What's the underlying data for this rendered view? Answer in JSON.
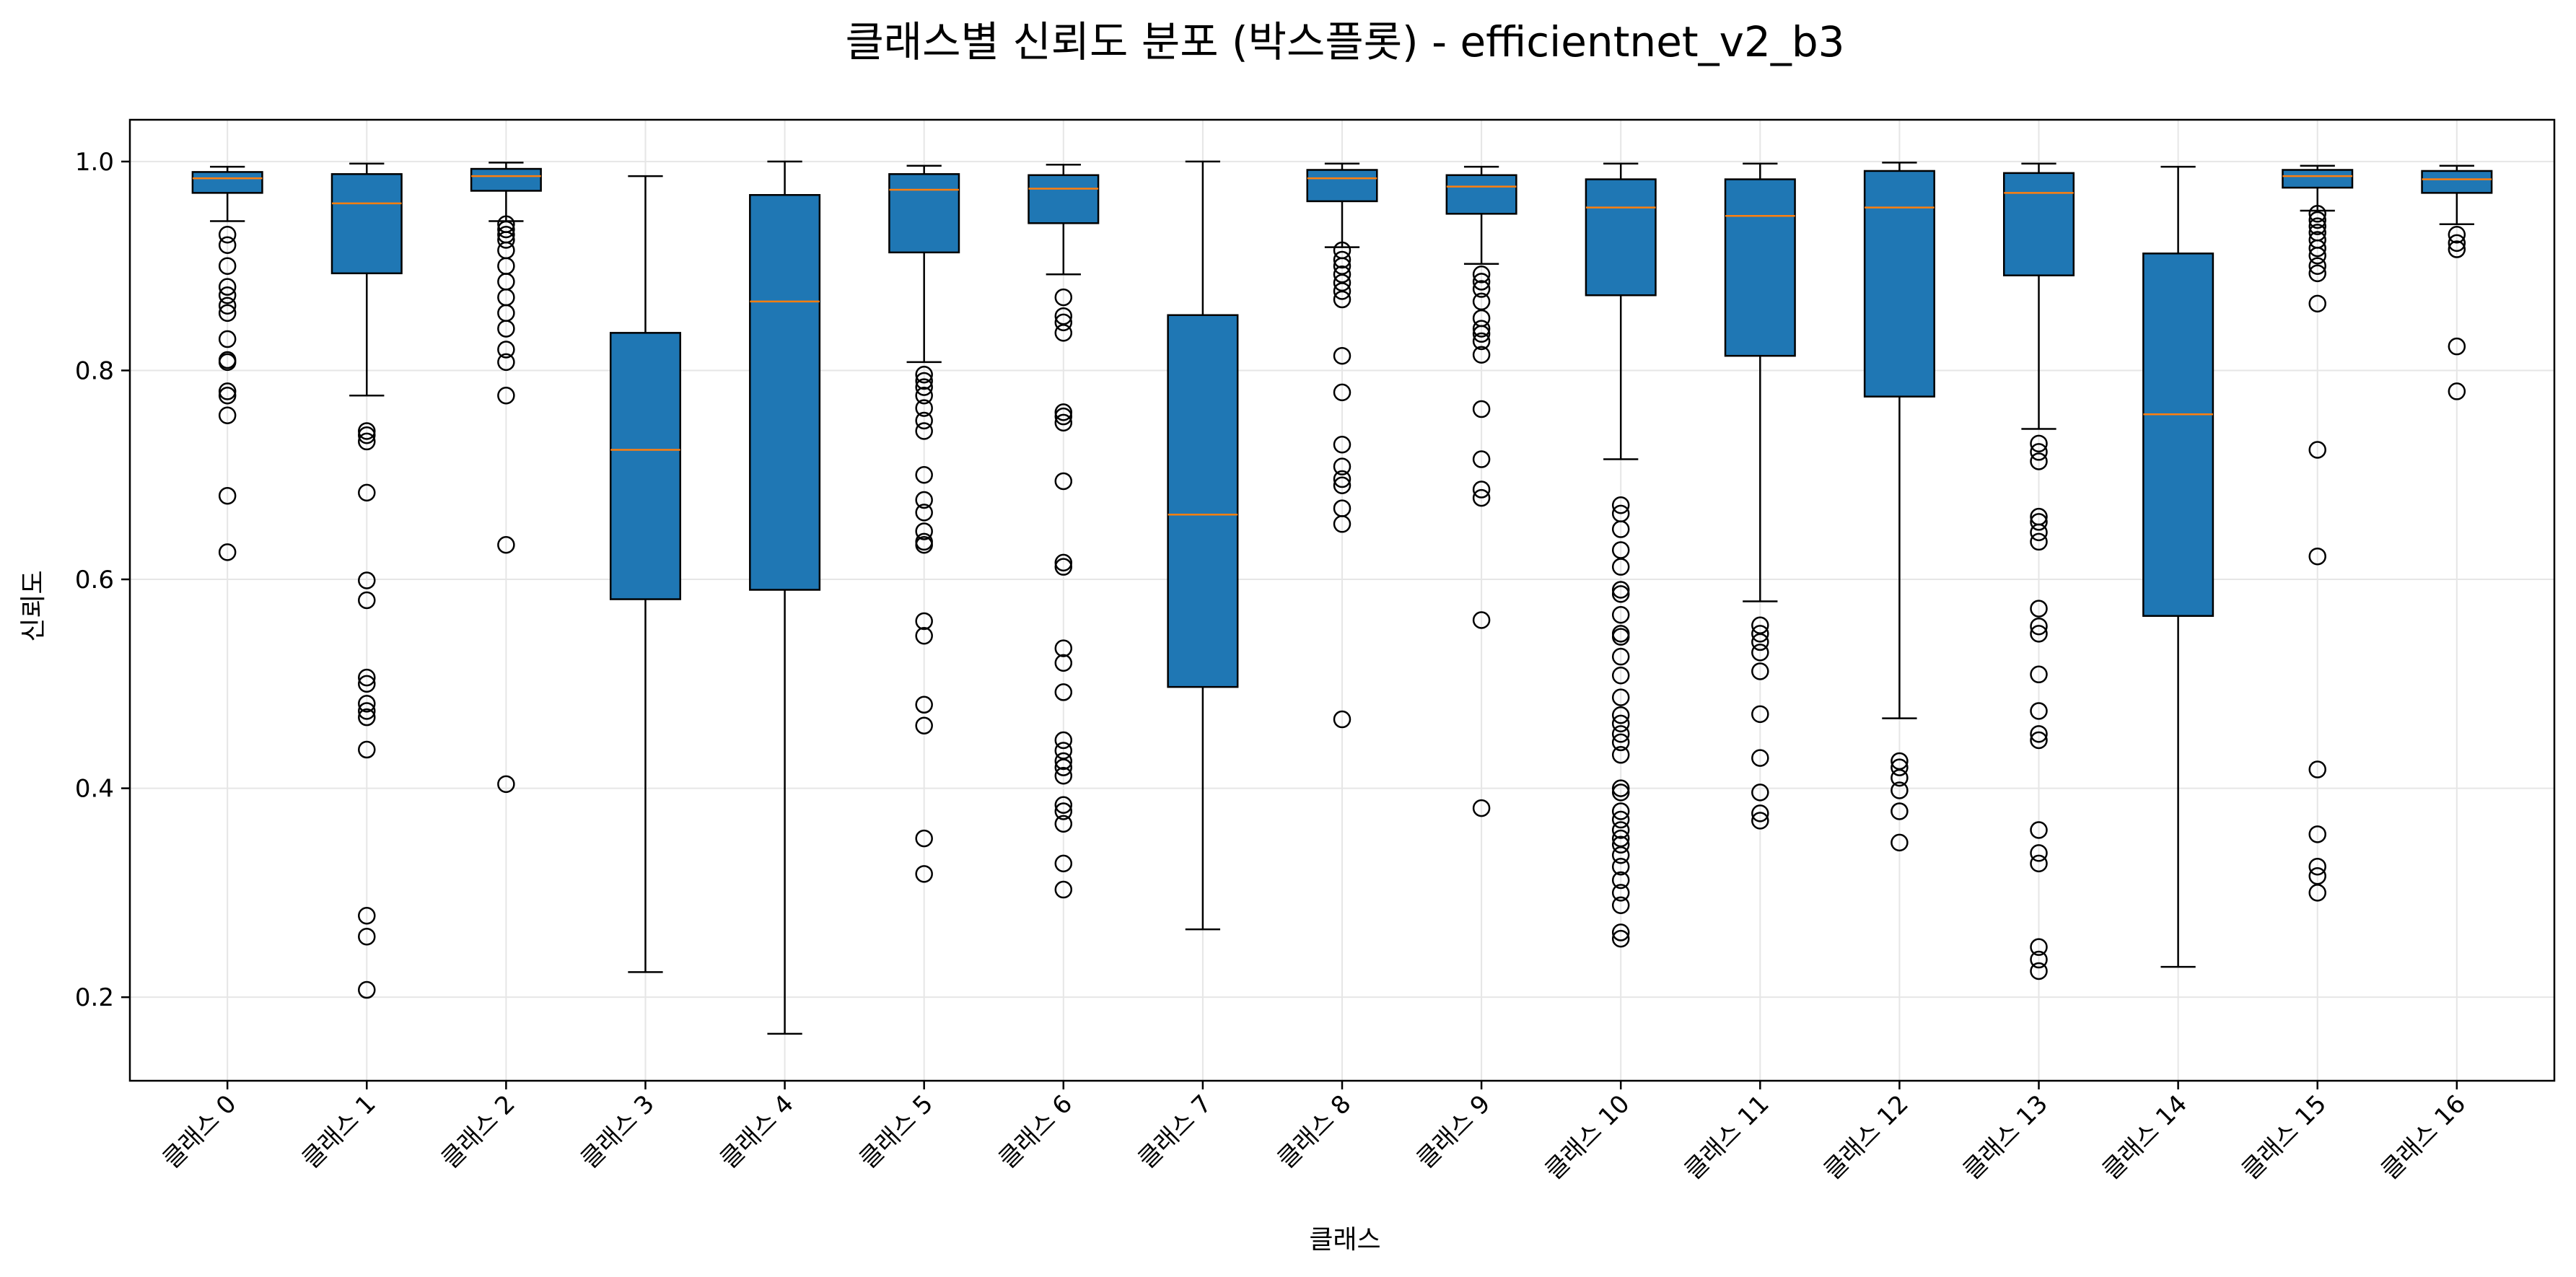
{
  "chart_data": {
    "type": "box",
    "title": "클래스별 신뢰도 분포 (박스플롯) - efficientnet_v2_b3",
    "xlabel": "클래스",
    "ylabel": "신뢰도",
    "ylim": [
      0.12,
      1.04
    ],
    "yticks": [
      0.2,
      0.4,
      0.6,
      0.8,
      1.0
    ],
    "ytick_labels": [
      "0.2",
      "0.4",
      "0.6",
      "0.8",
      "1.0"
    ],
    "grid": true,
    "colors": {
      "box_fill": "#1f77b4",
      "median": "#ff7f0e",
      "grid": "#e6e6e6"
    },
    "categories": [
      "클래스 0",
      "클래스 1",
      "클래스 2",
      "클래스 3",
      "클래스 4",
      "클래스 5",
      "클래스 6",
      "클래스 7",
      "클래스 8",
      "클래스 9",
      "클래스 10",
      "클래스 11",
      "클래스 12",
      "클래스 13",
      "클래스 14",
      "클래스 15",
      "클래스 16"
    ],
    "boxes": [
      {
        "whisker_low": 0.943,
        "q1": 0.97,
        "median": 0.984,
        "q3": 0.99,
        "whisker_high": 0.995,
        "outliers": [
          0.93,
          0.92,
          0.9,
          0.88,
          0.872,
          0.862,
          0.855,
          0.83,
          0.81,
          0.808,
          0.78,
          0.776,
          0.757,
          0.68,
          0.626
        ]
      },
      {
        "whisker_low": 0.776,
        "q1": 0.893,
        "median": 0.96,
        "q3": 0.988,
        "whisker_high": 0.998,
        "outliers": [
          0.742,
          0.738,
          0.732,
          0.683,
          0.599,
          0.58,
          0.506,
          0.5,
          0.481,
          0.474,
          0.468,
          0.437,
          0.278,
          0.258,
          0.207
        ]
      },
      {
        "whisker_low": 0.943,
        "q1": 0.972,
        "median": 0.986,
        "q3": 0.993,
        "whisker_high": 0.999,
        "outliers": [
          0.94,
          0.935,
          0.93,
          0.925,
          0.915,
          0.9,
          0.885,
          0.87,
          0.855,
          0.84,
          0.82,
          0.808,
          0.776,
          0.633,
          0.404
        ]
      },
      {
        "whisker_low": 0.224,
        "q1": 0.581,
        "median": 0.724,
        "q3": 0.836,
        "whisker_high": 0.986,
        "outliers": []
      },
      {
        "whisker_low": 0.165,
        "q1": 0.59,
        "median": 0.866,
        "q3": 0.968,
        "whisker_high": 1.0,
        "outliers": []
      },
      {
        "whisker_low": 0.808,
        "q1": 0.913,
        "median": 0.973,
        "q3": 0.988,
        "whisker_high": 0.996,
        "outliers": [
          0.796,
          0.79,
          0.784,
          0.776,
          0.764,
          0.752,
          0.742,
          0.7,
          0.676,
          0.664,
          0.646,
          0.636,
          0.633,
          0.56,
          0.546,
          0.48,
          0.46,
          0.352,
          0.318
        ]
      },
      {
        "whisker_low": 0.892,
        "q1": 0.941,
        "median": 0.974,
        "q3": 0.987,
        "whisker_high": 0.997,
        "outliers": [
          0.87,
          0.852,
          0.846,
          0.836,
          0.76,
          0.756,
          0.75,
          0.694,
          0.616,
          0.612,
          0.534,
          0.52,
          0.492,
          0.446,
          0.436,
          0.426,
          0.42,
          0.412,
          0.384,
          0.378,
          0.366,
          0.328,
          0.303
        ]
      },
      {
        "whisker_low": 0.265,
        "q1": 0.497,
        "median": 0.662,
        "q3": 0.853,
        "whisker_high": 1.0,
        "outliers": []
      },
      {
        "whisker_low": 0.918,
        "q1": 0.962,
        "median": 0.984,
        "q3": 0.992,
        "whisker_high": 0.998,
        "outliers": [
          0.915,
          0.906,
          0.9,
          0.892,
          0.884,
          0.876,
          0.868,
          0.814,
          0.779,
          0.729,
          0.708,
          0.696,
          0.69,
          0.668,
          0.653,
          0.466
        ]
      },
      {
        "whisker_low": 0.902,
        "q1": 0.95,
        "median": 0.976,
        "q3": 0.987,
        "whisker_high": 0.995,
        "outliers": [
          0.892,
          0.885,
          0.878,
          0.866,
          0.85,
          0.84,
          0.835,
          0.828,
          0.815,
          0.763,
          0.715,
          0.686,
          0.678,
          0.561,
          0.381
        ]
      },
      {
        "whisker_low": 0.715,
        "q1": 0.872,
        "median": 0.956,
        "q3": 0.983,
        "whisker_high": 0.998,
        "outliers": [
          0.671,
          0.663,
          0.648,
          0.628,
          0.612,
          0.59,
          0.586,
          0.566,
          0.548,
          0.545,
          0.526,
          0.508,
          0.487,
          0.47,
          0.462,
          0.452,
          0.444,
          0.432,
          0.4,
          0.396,
          0.378,
          0.37,
          0.36,
          0.352,
          0.346,
          0.336,
          0.325,
          0.312,
          0.3,
          0.288,
          0.262,
          0.256
        ]
      },
      {
        "whisker_low": 0.579,
        "q1": 0.814,
        "median": 0.948,
        "q3": 0.983,
        "whisker_high": 0.998,
        "outliers": [
          0.556,
          0.548,
          0.54,
          0.53,
          0.512,
          0.471,
          0.429,
          0.396,
          0.376,
          0.369
        ]
      },
      {
        "whisker_low": 0.467,
        "q1": 0.775,
        "median": 0.956,
        "q3": 0.991,
        "whisker_high": 0.999,
        "outliers": [
          0.426,
          0.42,
          0.41,
          0.398,
          0.378,
          0.348
        ]
      },
      {
        "whisker_low": 0.744,
        "q1": 0.891,
        "median": 0.97,
        "q3": 0.989,
        "whisker_high": 0.998,
        "outliers": [
          0.73,
          0.722,
          0.713,
          0.66,
          0.655,
          0.645,
          0.636,
          0.572,
          0.555,
          0.548,
          0.509,
          0.474,
          0.452,
          0.446,
          0.36,
          0.338,
          0.328,
          0.248,
          0.236,
          0.225
        ]
      },
      {
        "whisker_low": 0.229,
        "q1": 0.565,
        "median": 0.758,
        "q3": 0.912,
        "whisker_high": 0.995,
        "outliers": []
      },
      {
        "whisker_low": 0.953,
        "q1": 0.975,
        "median": 0.986,
        "q3": 0.992,
        "whisker_high": 0.996,
        "outliers": [
          0.95,
          0.944,
          0.938,
          0.932,
          0.925,
          0.917,
          0.91,
          0.9,
          0.893,
          0.864,
          0.724,
          0.622,
          0.418,
          0.356,
          0.325,
          0.316,
          0.3
        ]
      },
      {
        "whisker_low": 0.94,
        "q1": 0.97,
        "median": 0.983,
        "q3": 0.991,
        "whisker_high": 0.996,
        "outliers": [
          0.93,
          0.922,
          0.916,
          0.823,
          0.78
        ]
      }
    ]
  }
}
